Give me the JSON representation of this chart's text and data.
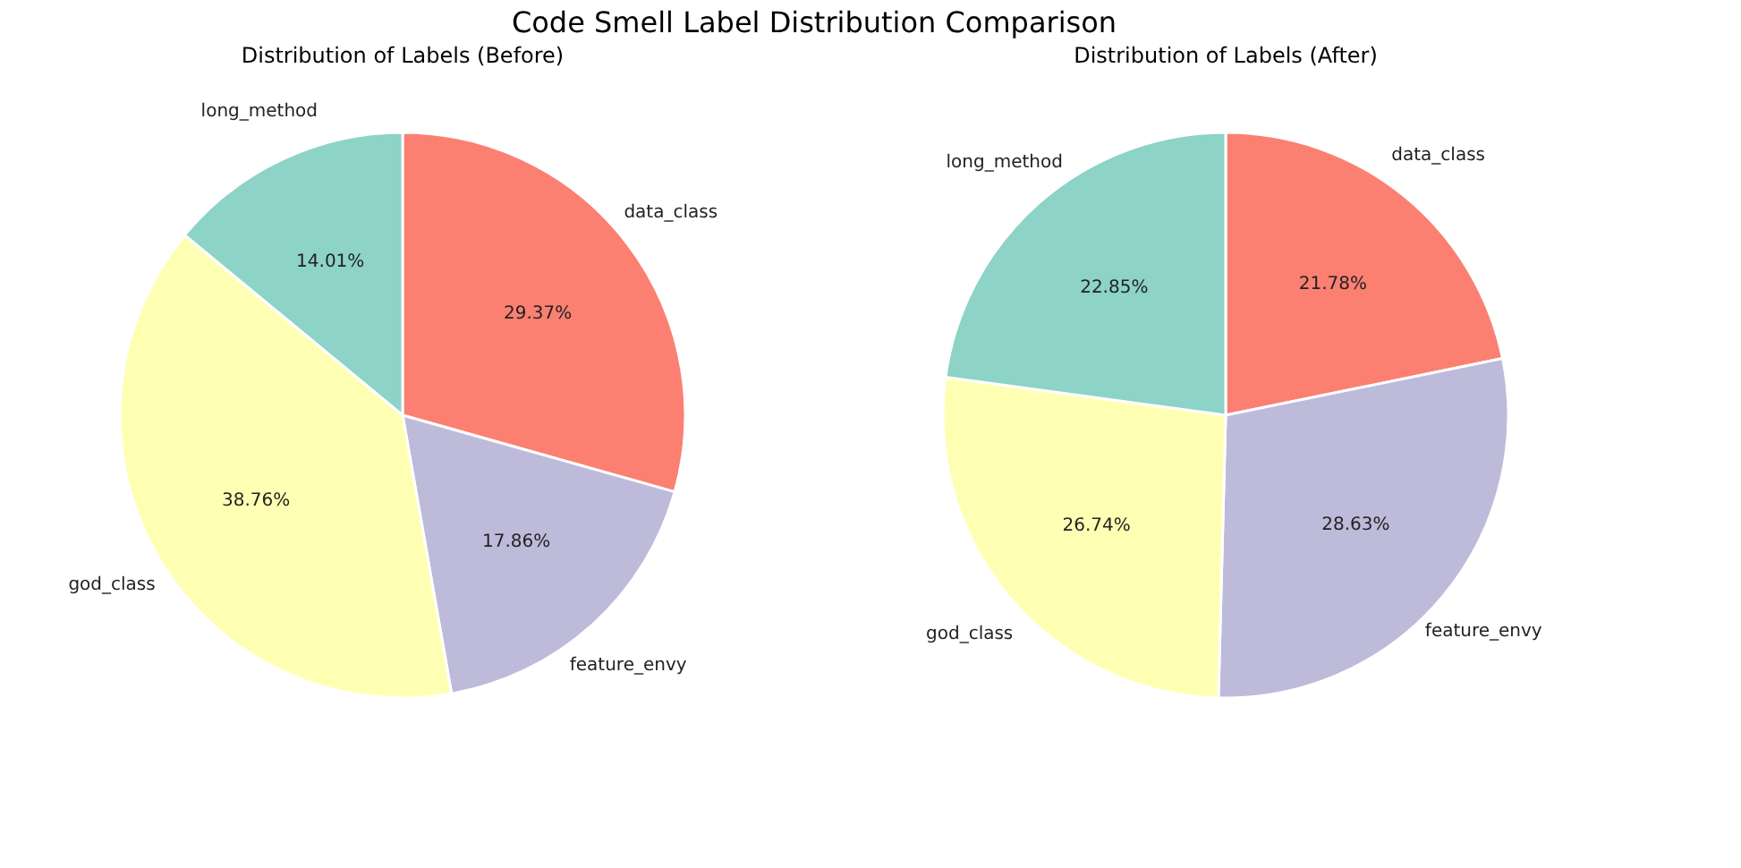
{
  "chart_data": [
    {
      "type": "pie",
      "title": "Distribution of Labels (Before)",
      "annotations": [
        "Code Smell Label Distribution Comparison"
      ],
      "categories": [
        "data_class",
        "feature_envy",
        "god_class",
        "long_method"
      ],
      "values": [
        29.37,
        17.86,
        38.76,
        14.01
      ],
      "value_labels": [
        "29.37%",
        "17.86%",
        "38.76%",
        "14.01%"
      ],
      "colors": [
        "#fb8072",
        "#bebada",
        "#ffffb3",
        "#8dd3c7"
      ]
    },
    {
      "type": "pie",
      "title": "Distribution of Labels (After)",
      "categories": [
        "data_class",
        "feature_envy",
        "god_class",
        "long_method"
      ],
      "values": [
        21.78,
        28.63,
        26.74,
        22.85
      ],
      "value_labels": [
        "21.78%",
        "28.63%",
        "26.74%",
        "22.85%"
      ],
      "colors": [
        "#fb8072",
        "#bebada",
        "#ffffb3",
        "#8dd3c7"
      ]
    }
  ]
}
